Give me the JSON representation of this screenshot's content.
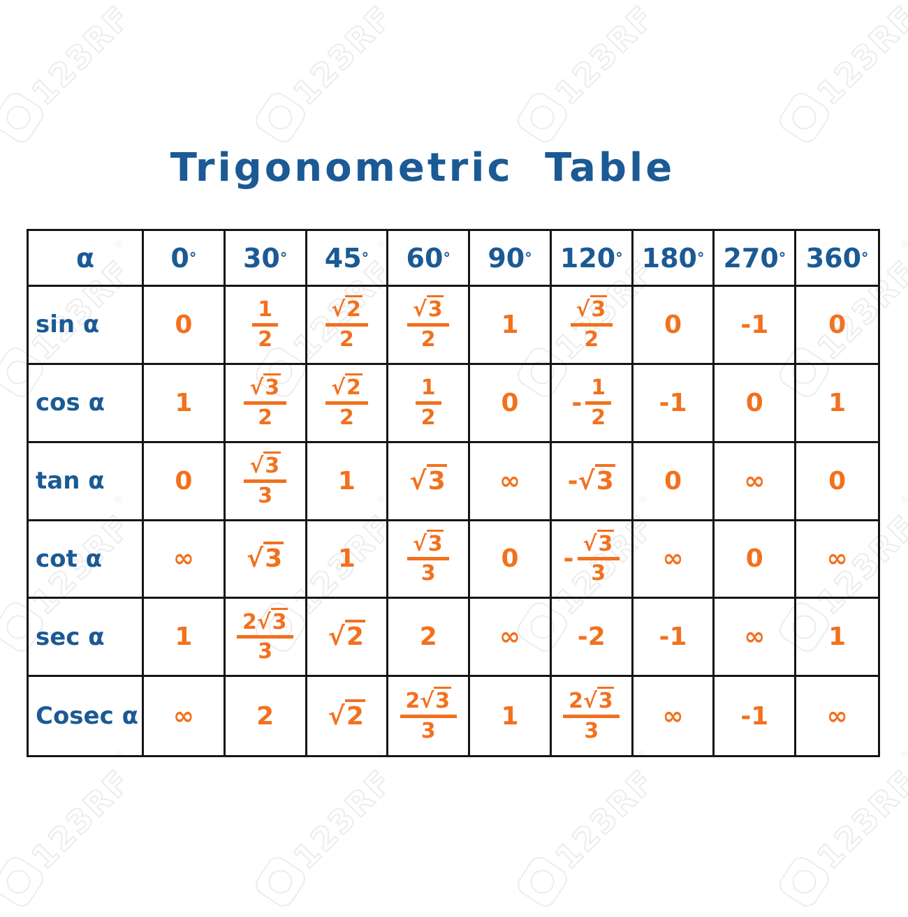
{
  "title": "Trigonometric Table",
  "watermark": {
    "text": "123RF",
    "reg": "®"
  },
  "colors": {
    "blue": "#1b5a94",
    "orange": "#f2711e",
    "grid": "#151515"
  },
  "table": {
    "corner_label": "α",
    "angle_headers": [
      "0",
      "30",
      "45",
      "60",
      "90",
      "120",
      "180",
      "270",
      "360"
    ],
    "degree_symbol": "°",
    "rows": [
      {
        "label": "sin α",
        "values": [
          "0",
          "1/2",
          "√2/2",
          "√3/2",
          "1",
          "√3/2",
          "0",
          "-1",
          "0"
        ]
      },
      {
        "label": "cos α",
        "values": [
          "1",
          "√3/2",
          "√2/2",
          "1/2",
          "0",
          "-1/2",
          "-1",
          "0",
          "1"
        ]
      },
      {
        "label": "tan α",
        "values": [
          "0",
          "√3/3",
          "1",
          "√3",
          "∞",
          "-√3",
          "0",
          "∞",
          "0"
        ]
      },
      {
        "label": "cot α",
        "values": [
          "∞",
          "√3",
          "1",
          "√3/3",
          "0",
          "-√3/3",
          "∞",
          "0",
          "∞"
        ]
      },
      {
        "label": "sec α",
        "values": [
          "1",
          "2√3/3",
          "√2",
          "2",
          "∞",
          "-2",
          "-1",
          "∞",
          "1"
        ]
      },
      {
        "label": "Cosec α",
        "values": [
          "∞",
          "2",
          "√2",
          "2√3/3",
          "1",
          "2√3/3",
          "∞",
          "-1",
          "∞"
        ]
      }
    ]
  }
}
